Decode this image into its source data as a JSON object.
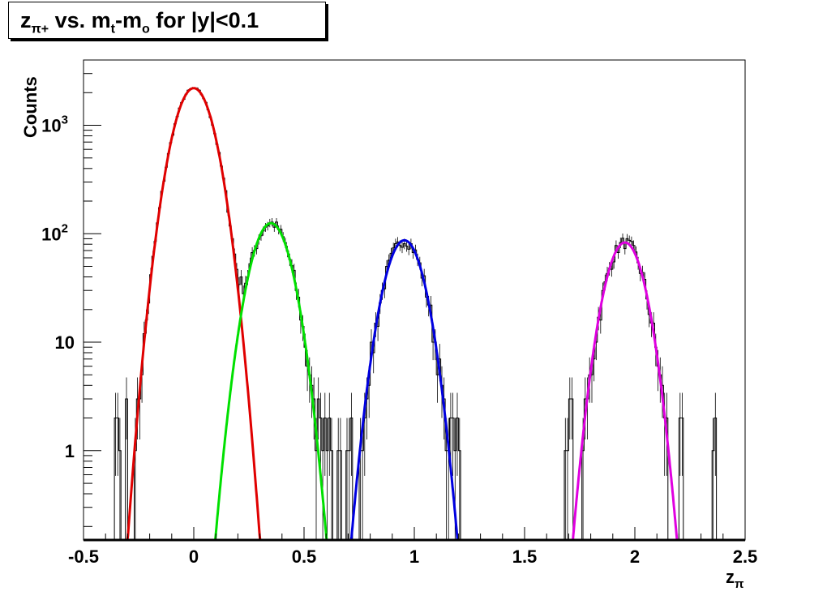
{
  "title": {
    "parts": [
      {
        "text": "z",
        "sub": "π+"
      },
      {
        "text": " vs. m",
        "sub": "t"
      },
      {
        "text": "-m",
        "sub": "o"
      },
      {
        "text": " for |y|<0.1",
        "sub": ""
      }
    ]
  },
  "colors": {
    "histogram": "#000000",
    "series": [
      "#e00000",
      "#00e000",
      "#0000e0",
      "#e000e0"
    ]
  },
  "chart_data": {
    "type": "line",
    "title": "zπ+ vs. mt-mo for |y|<0.1",
    "xlabel": {
      "text": "z",
      "sub": "π"
    },
    "ylabel": "Counts",
    "xlim": [
      -0.5,
      2.5
    ],
    "ylim": [
      0.15,
      4000
    ],
    "yscale": "log",
    "grid": false,
    "legend": "none",
    "x_ticks": [
      {
        "value": -0.5,
        "label": "-0.5"
      },
      {
        "value": 0,
        "label": "0"
      },
      {
        "value": 0.5,
        "label": "0.5"
      },
      {
        "value": 1,
        "label": "1"
      },
      {
        "value": 1.5,
        "label": "1.5"
      },
      {
        "value": 2,
        "label": "2"
      },
      {
        "value": 2.5,
        "label": "2.5"
      }
    ],
    "y_ticks": [
      {
        "value": 1,
        "label": "1",
        "sup": ""
      },
      {
        "value": 10,
        "label": "10",
        "sup": ""
      },
      {
        "value": 100,
        "label": "10",
        "sup": "2"
      },
      {
        "value": 1000,
        "label": "10",
        "sup": "3"
      }
    ],
    "series": [
      {
        "kind": "gaussian",
        "amplitude": 2200,
        "mean": 0.0,
        "sigma": 0.0685,
        "x_range": [
          -0.335,
          0.34
        ]
      },
      {
        "kind": "gaussian",
        "amplitude": 125,
        "mean": 0.35,
        "sigma": 0.0688,
        "x_range": [
          0.095,
          0.605
        ]
      },
      {
        "kind": "gaussian",
        "amplitude": 87,
        "mean": 0.955,
        "sigma": 0.0675,
        "x_range": [
          0.69,
          1.205
        ]
      },
      {
        "kind": "gaussian",
        "amplitude": 83,
        "mean": 1.955,
        "sigma": 0.0664,
        "x_range": [
          1.695,
          2.215
        ]
      }
    ],
    "histogram": {
      "bin_width": 0.01,
      "shape": "sum of series",
      "noise_floor_bins": [
        {
          "x": -0.37,
          "y": 1
        },
        {
          "x": -0.35,
          "y": 2
        },
        {
          "x": -0.34,
          "y": 2
        },
        {
          "x": -0.33,
          "y": 1
        },
        {
          "x": -0.31,
          "y": 2
        },
        {
          "x": -0.3,
          "y": 3
        },
        {
          "x": 0.57,
          "y": 3
        },
        {
          "x": 0.58,
          "y": 2
        },
        {
          "x": 0.59,
          "y": 1
        },
        {
          "x": 0.6,
          "y": 2
        },
        {
          "x": 0.61,
          "y": 1
        },
        {
          "x": 0.62,
          "y": 2
        },
        {
          "x": 0.63,
          "y": 1
        },
        {
          "x": 0.66,
          "y": 1
        },
        {
          "x": 0.69,
          "y": 1
        },
        {
          "x": 0.7,
          "y": 1
        },
        {
          "x": 0.71,
          "y": 2
        },
        {
          "x": 1.17,
          "y": 2
        },
        {
          "x": 1.18,
          "y": 1
        },
        {
          "x": 1.19,
          "y": 2
        },
        {
          "x": 1.2,
          "y": 1
        },
        {
          "x": 1.69,
          "y": 1
        },
        {
          "x": 1.7,
          "y": 2
        },
        {
          "x": 1.71,
          "y": 3
        },
        {
          "x": 1.72,
          "y": 2
        },
        {
          "x": 2.2,
          "y": 1
        },
        {
          "x": 2.21,
          "y": 2
        },
        {
          "x": 2.35,
          "y": 1
        },
        {
          "x": 2.36,
          "y": 2
        }
      ]
    }
  }
}
